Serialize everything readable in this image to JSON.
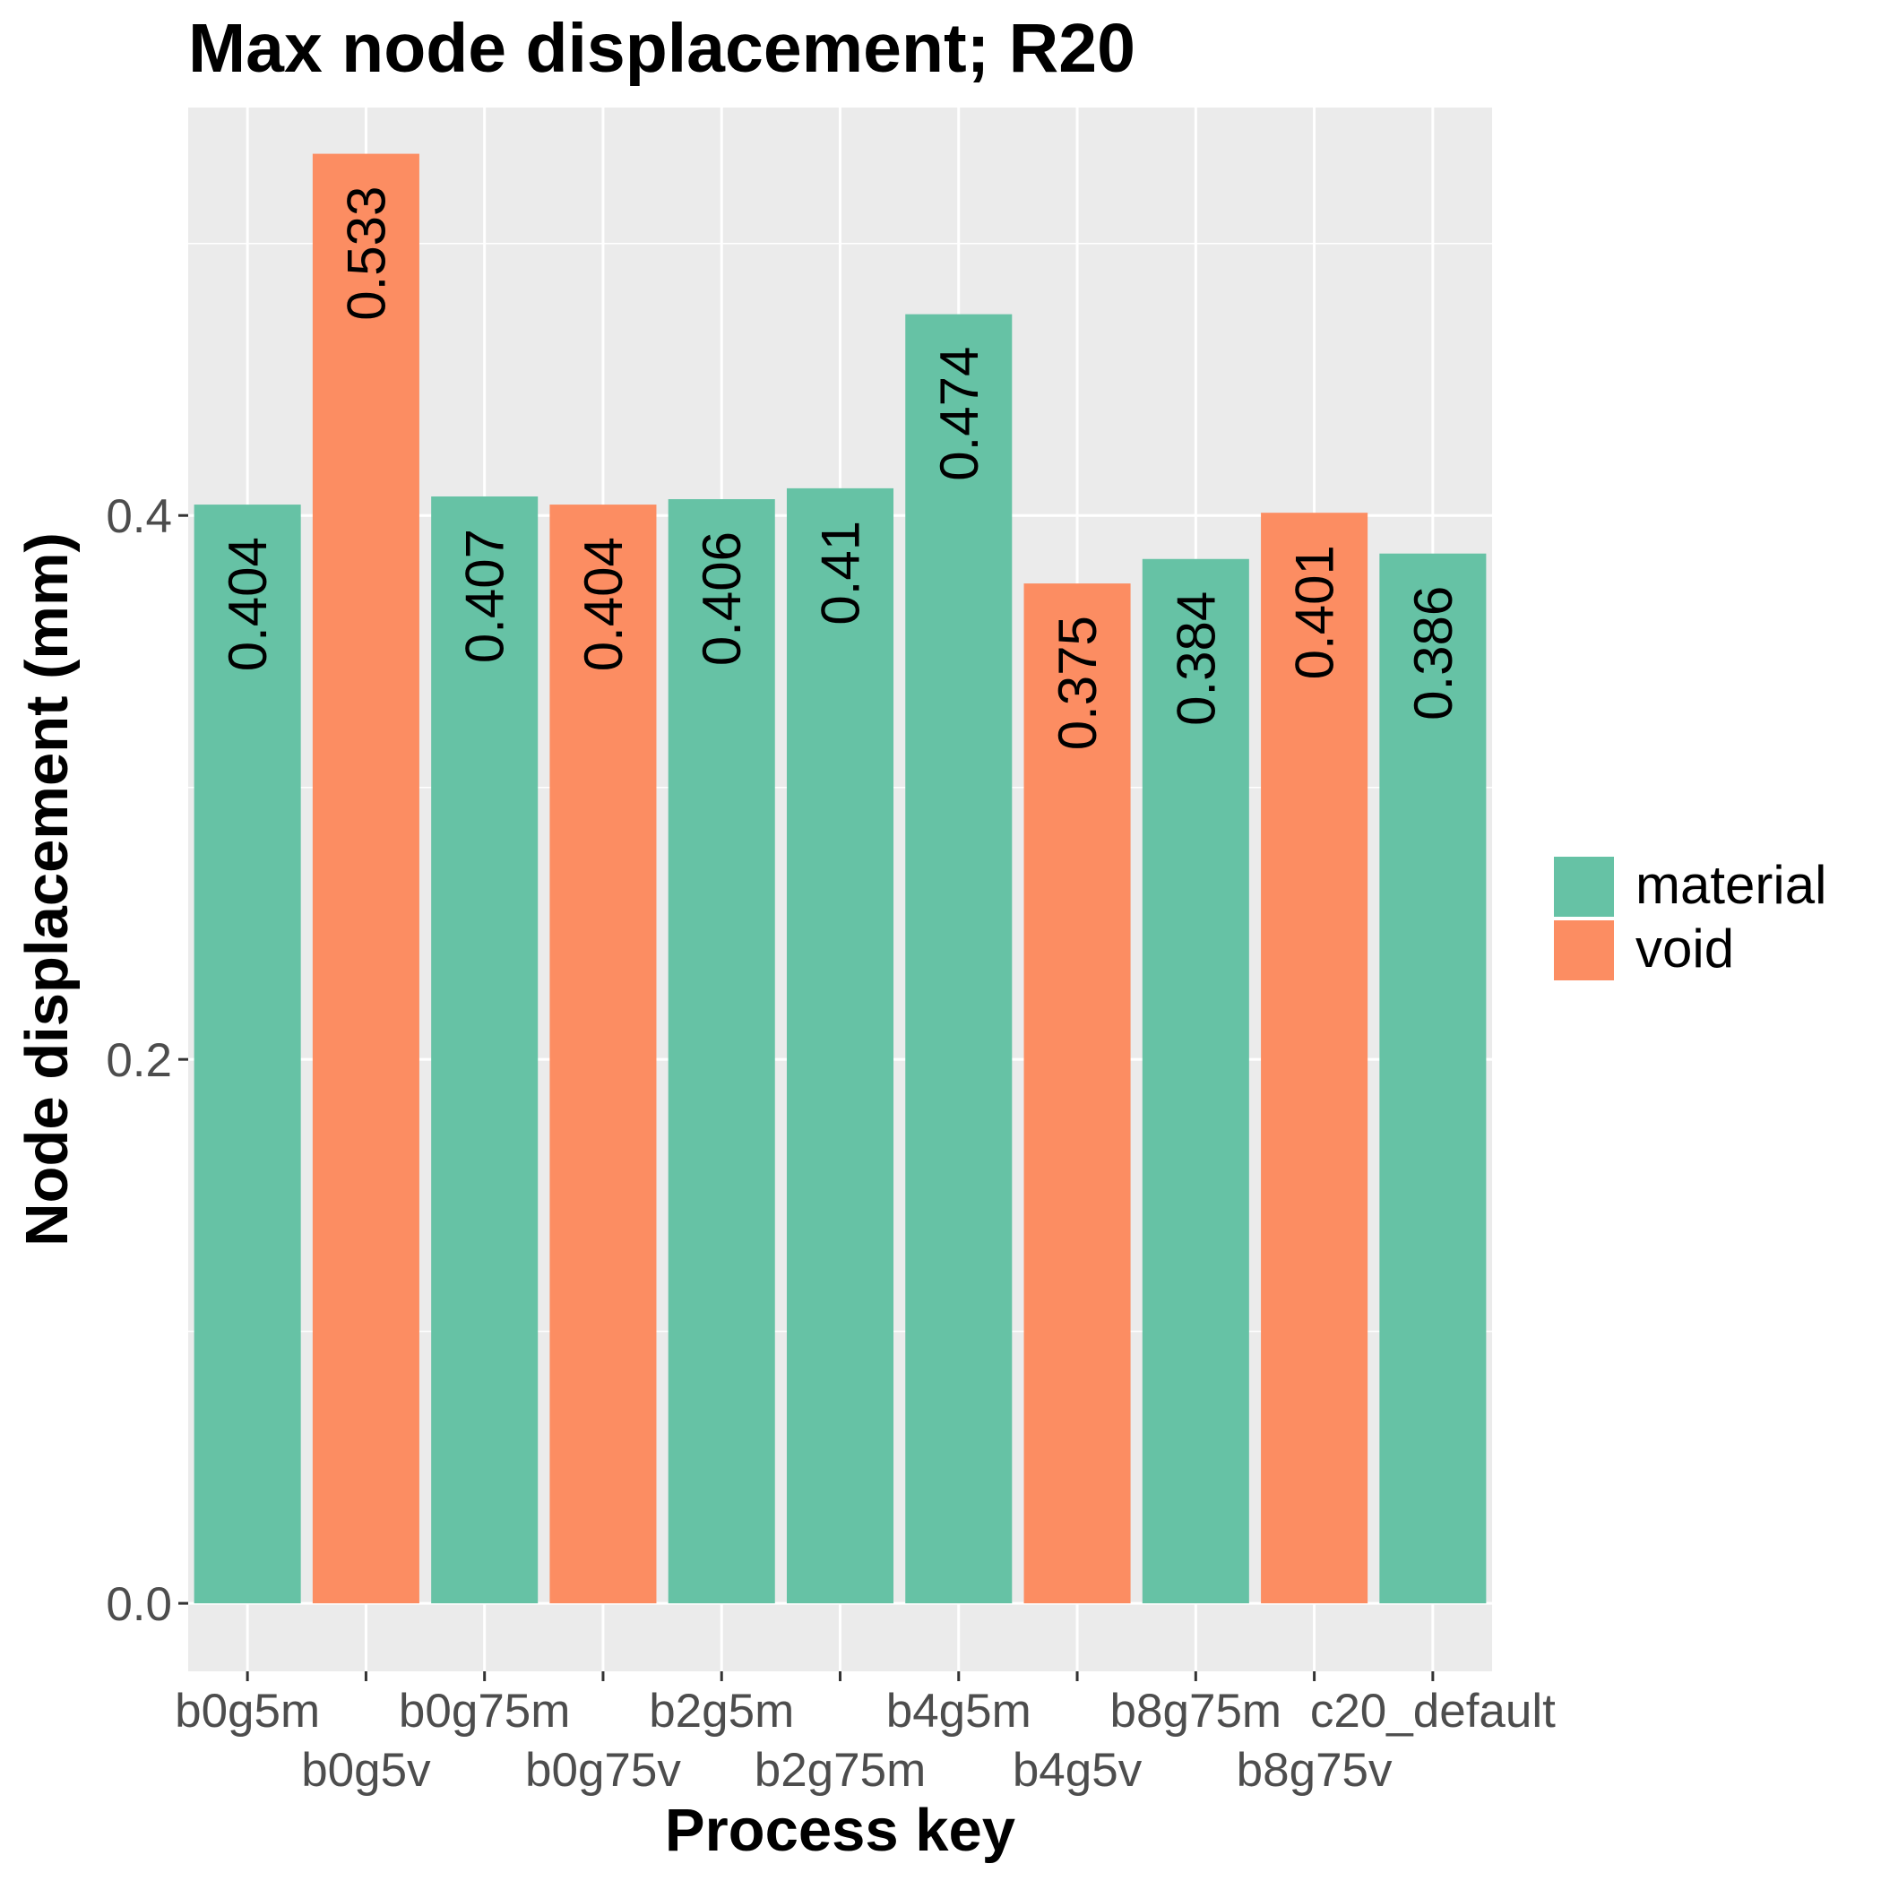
{
  "chart_data": {
    "type": "bar",
    "title": "Max node displacement; R20",
    "xlabel": "Process key",
    "ylabel": "Node displacement (mm)",
    "ylim": [
      -0.025,
      0.55
    ],
    "yticks": [
      "0.0",
      "0.2",
      "0.4"
    ],
    "ytick_values": [
      0.0,
      0.2,
      0.4
    ],
    "grid": true,
    "legend_position": "right",
    "categories": [
      "b0g5m",
      "b0g5v",
      "b0g75m",
      "b0g75v",
      "b2g5m",
      "b2g75m",
      "b4g5m",
      "b4g5v",
      "b8g75m",
      "b8g75v",
      "c20_default"
    ],
    "values": [
      0.404,
      0.533,
      0.407,
      0.404,
      0.406,
      0.41,
      0.474,
      0.375,
      0.384,
      0.401,
      0.386
    ],
    "value_labels": [
      "0.404",
      "0.533",
      "0.407",
      "0.404",
      "0.406",
      "0.41",
      "0.474",
      "0.375",
      "0.384",
      "0.401",
      "0.386"
    ],
    "groups": [
      "material",
      "void",
      "material",
      "void",
      "material",
      "material",
      "material",
      "void",
      "material",
      "void",
      "material"
    ],
    "legend": [
      {
        "name": "material",
        "color": "#66c2a5"
      },
      {
        "name": "void",
        "color": "#fc8d62"
      }
    ]
  }
}
